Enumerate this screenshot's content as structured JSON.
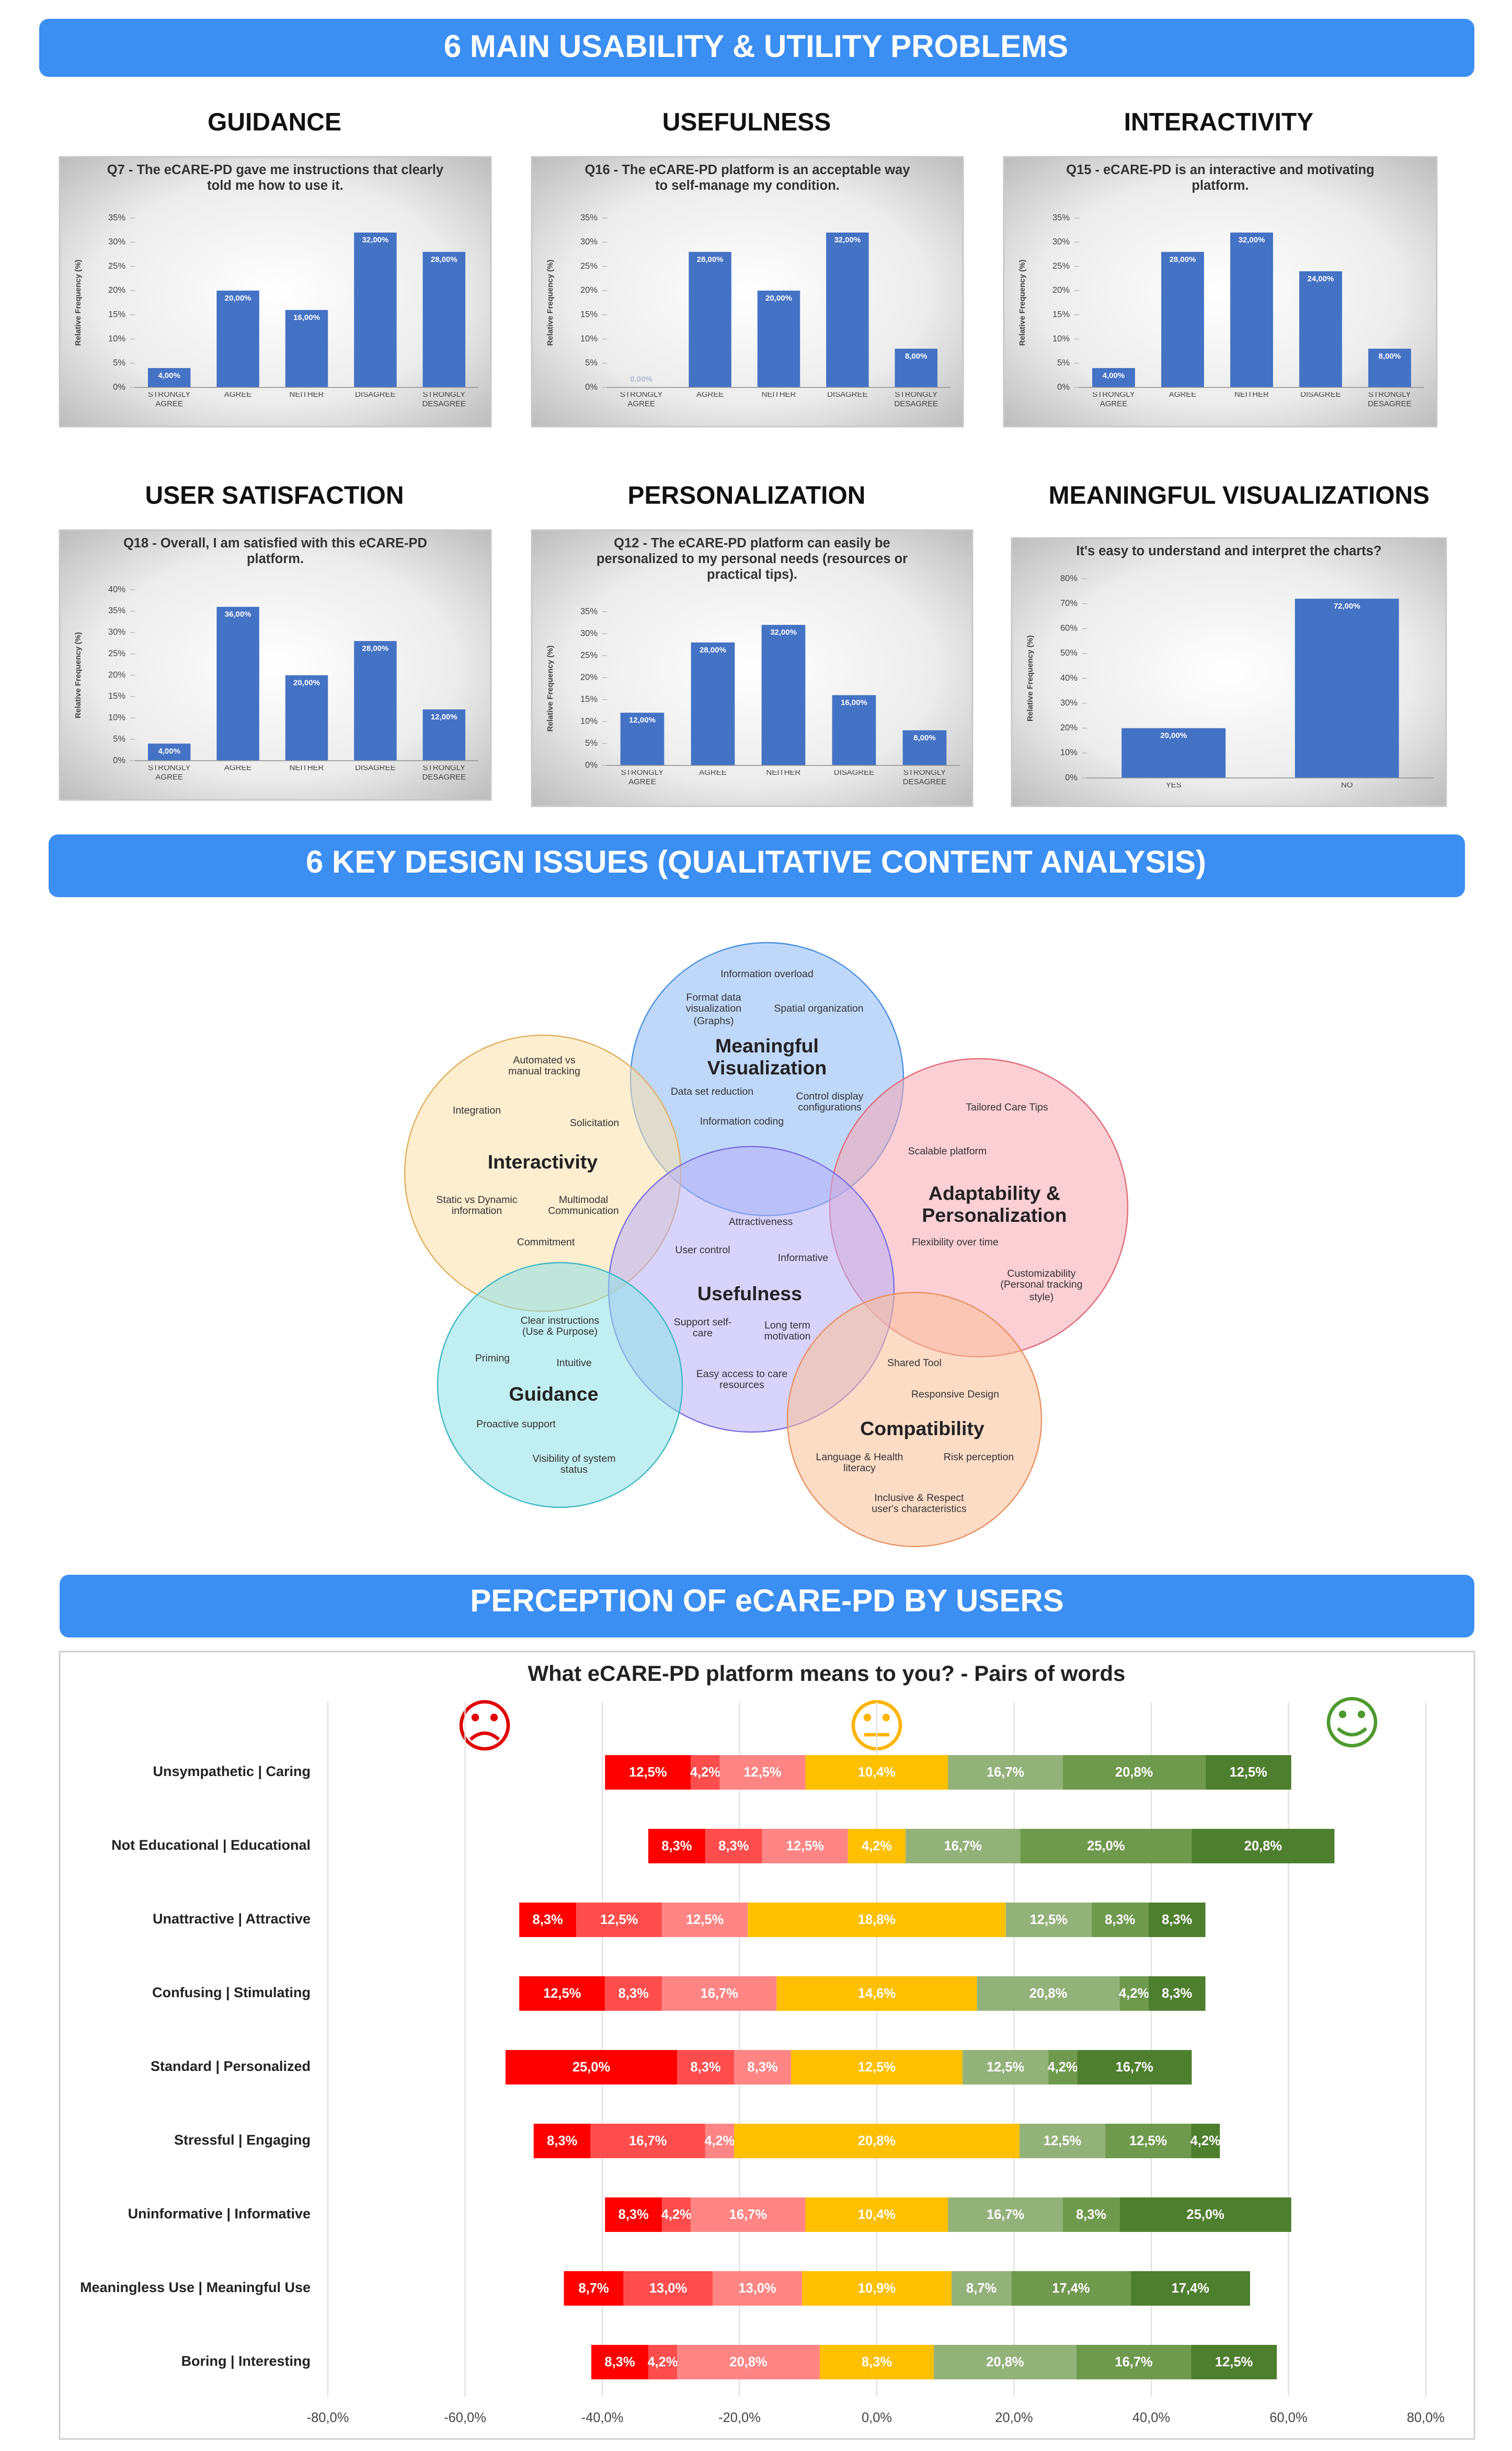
{
  "banners": [
    "6 MAIN USABILITY & UTILITY PROBLEMS",
    "6 KEY DESIGN ISSUES (QUALITATIVE CONTENT ANALYSIS)",
    "PERCEPTION OF eCARE-PD BY USERS"
  ],
  "chart_data": [
    {
      "type": "bar",
      "section": "GUIDANCE",
      "title": "Q7 - The eCARE-PD gave me instructions that clearly told me how to use it.",
      "y_label": "Relative Frequency (%)",
      "categories": [
        "STRONGLY AGREE",
        "AGREE",
        "NEITHER",
        "DISAGREE",
        "STRONGLY DESAGREE"
      ],
      "values": [
        4,
        20,
        16,
        32,
        28
      ],
      "value_labels": [
        "4,00%",
        "20,00%",
        "16,00%",
        "32,00%",
        "28,00%"
      ],
      "color": "#4472c4",
      "ylim": [
        0,
        35
      ],
      "yticks": [
        {
          "value": 0,
          "label": "0%"
        },
        {
          "value": 5,
          "label": "5%"
        },
        {
          "value": 10,
          "label": "10%"
        },
        {
          "value": 15,
          "label": "15%"
        },
        {
          "value": 20,
          "label": "20%"
        },
        {
          "value": 25,
          "label": "25%"
        },
        {
          "value": 30,
          "label": "30%"
        },
        {
          "value": 35,
          "label": "35%"
        }
      ]
    },
    {
      "type": "bar",
      "section": "USEFULNESS",
      "title": "Q16 - The eCARE-PD platform is an acceptable way to self-manage my condition.",
      "y_label": "Relative Frequency (%)",
      "categories": [
        "STRONGLY AGREE",
        "AGREE",
        "NEITHER",
        "DISAGREE",
        "STRONGLY DESAGREE"
      ],
      "values": [
        0,
        28,
        20,
        32,
        8
      ],
      "value_labels": [
        "0,00%",
        "28,00%",
        "20,00%",
        "32,00%",
        "8,00%"
      ],
      "color": "#4472c4",
      "ylim": [
        0,
        35
      ],
      "yticks": [
        {
          "value": 0,
          "label": "0%"
        },
        {
          "value": 5,
          "label": "5%"
        },
        {
          "value": 10,
          "label": "10%"
        },
        {
          "value": 15,
          "label": "15%"
        },
        {
          "value": 20,
          "label": "20%"
        },
        {
          "value": 25,
          "label": "25%"
        },
        {
          "value": 30,
          "label": "30%"
        },
        {
          "value": 35,
          "label": "35%"
        }
      ]
    },
    {
      "type": "bar",
      "section": "INTERACTIVITY",
      "title": "Q15 - eCARE-PD is an interactive and motivating platform.",
      "y_label": "Relative Frequency (%)",
      "categories": [
        "STRONGLY AGREE",
        "AGREE",
        "NEITHER",
        "DISAGREE",
        "STRONGLY DESAGREE"
      ],
      "values": [
        4,
        28,
        32,
        24,
        8
      ],
      "value_labels": [
        "4,00%",
        "28,00%",
        "32,00%",
        "24,00%",
        "8,00%"
      ],
      "color": "#4472c4",
      "ylim": [
        0,
        35
      ],
      "yticks": [
        {
          "value": 0,
          "label": "0%"
        },
        {
          "value": 5,
          "label": "5%"
        },
        {
          "value": 10,
          "label": "10%"
        },
        {
          "value": 15,
          "label": "15%"
        },
        {
          "value": 20,
          "label": "20%"
        },
        {
          "value": 25,
          "label": "25%"
        },
        {
          "value": 30,
          "label": "30%"
        },
        {
          "value": 35,
          "label": "35%"
        }
      ]
    },
    {
      "type": "bar",
      "section": "USER SATISFACTION",
      "title": "Q18 - Overall, I am satisfied with this eCARE-PD platform.",
      "y_label": "Relative Frequency (%)",
      "categories": [
        "STRONGLY AGREE",
        "AGREE",
        "NEITHER",
        "DISAGREE",
        "STRONGLY DESAGREE"
      ],
      "values": [
        4,
        36,
        20,
        28,
        12
      ],
      "value_labels": [
        "4,00%",
        "36,00%",
        "20,00%",
        "28,00%",
        "12,00%"
      ],
      "color": "#4472c4",
      "ylim": [
        0,
        40
      ],
      "yticks": [
        {
          "value": 0,
          "label": "0%"
        },
        {
          "value": 5,
          "label": "5%"
        },
        {
          "value": 10,
          "label": "10%"
        },
        {
          "value": 15,
          "label": "15%"
        },
        {
          "value": 20,
          "label": "20%"
        },
        {
          "value": 25,
          "label": "25%"
        },
        {
          "value": 30,
          "label": "30%"
        },
        {
          "value": 35,
          "label": "35%"
        },
        {
          "value": 40,
          "label": "40%"
        }
      ]
    },
    {
      "type": "bar",
      "section": "PERSONALIZATION",
      "title": "Q12 - The eCARE-PD platform can easily be personalized to my personal needs (resources or practical tips).",
      "y_label": "Relative Frequency (%)",
      "categories": [
        "STRONGLY AGREE",
        "AGREE",
        "NEITHER",
        "DISAGREE",
        "STRONGLY DESAGREE"
      ],
      "values": [
        12,
        28,
        32,
        16,
        8
      ],
      "value_labels": [
        "12,00%",
        "28,00%",
        "32,00%",
        "16,00%",
        "8,00%"
      ],
      "color": "#4472c4",
      "ylim": [
        0,
        35
      ],
      "yticks": [
        {
          "value": 0,
          "label": "0%"
        },
        {
          "value": 5,
          "label": "5%"
        },
        {
          "value": 10,
          "label": "10%"
        },
        {
          "value": 15,
          "label": "15%"
        },
        {
          "value": 20,
          "label": "20%"
        },
        {
          "value": 25,
          "label": "25%"
        },
        {
          "value": 30,
          "label": "30%"
        },
        {
          "value": 35,
          "label": "35%"
        }
      ]
    },
    {
      "type": "bar",
      "section": "MEANINGFUL VISUALIZATIONS",
      "title": "It's easy to understand and interpret the charts?",
      "y_label": "Relative Frequency (%)",
      "categories": [
        "YES",
        "NO"
      ],
      "values": [
        20,
        72
      ],
      "value_labels": [
        "20,00%",
        "72,00%"
      ],
      "color": "#4472c4",
      "ylim": [
        0,
        80
      ],
      "yticks": [
        {
          "value": 0,
          "label": "0%"
        },
        {
          "value": 10,
          "label": "10%"
        },
        {
          "value": 20,
          "label": "20%"
        },
        {
          "value": 30,
          "label": "30%"
        },
        {
          "value": 40,
          "label": "40%"
        },
        {
          "value": 50,
          "label": "50%"
        },
        {
          "value": 60,
          "label": "60%"
        },
        {
          "value": 70,
          "label": "70%"
        },
        {
          "value": 80,
          "label": "80%"
        }
      ]
    },
    {
      "type": "diverging_bar",
      "title": "What eCARE-PD platform means to you? - Pairs of words",
      "categories": [
        "Unsympathetic | Caring",
        "Not Educational | Educational",
        "Unattractive | Attractive",
        "Confusing | Stimulating",
        "Standard | Personalized",
        "Stressful | Engaging",
        "Uninformative | Informative",
        "Meaningless Use | Meaningful Use",
        "Boring | Interesting"
      ],
      "series": [
        {
          "color": "#ff0000",
          "values": [
            12.5,
            8.3,
            8.3,
            12.5,
            25.0,
            8.3,
            8.3,
            8.7,
            8.3
          ],
          "value_labels": [
            "12,5%",
            "8,3%",
            "8,3%",
            "12,5%",
            "25,0%",
            "8,3%",
            "8,3%",
            "8,7%",
            "8,3%"
          ]
        },
        {
          "color": "#ff4d4d",
          "values": [
            4.2,
            8.3,
            12.5,
            8.3,
            8.3,
            16.7,
            4.2,
            13.0,
            4.2
          ],
          "value_labels": [
            "4,2%",
            "8,3%",
            "12,5%",
            "8,3%",
            "8,3%",
            "16,7%",
            "4,2%",
            "13,0%",
            "4,2%"
          ]
        },
        {
          "color": "#ff8585",
          "values": [
            12.5,
            12.5,
            12.5,
            16.7,
            8.3,
            4.2,
            16.7,
            13.0,
            20.8
          ],
          "value_labels": [
            "12,5%",
            "12,5%",
            "12,5%",
            "16,7%",
            "8,3%",
            "4,2%",
            "16,7%",
            "13,0%",
            "20,8%"
          ]
        },
        {
          "color": "#ffc000",
          "values": [
            10.4,
            4.2,
            18.8,
            14.6,
            12.5,
            20.8,
            10.4,
            10.9,
            8.3
          ],
          "value_labels": [
            "10,4%",
            "4,2%",
            "18,8%",
            "14,6%",
            "12,5%",
            "20,8%",
            "10,4%",
            "10,9%",
            "8,3%"
          ]
        },
        {
          "color": "#93b27a",
          "values": [
            16.7,
            16.7,
            12.5,
            20.8,
            12.5,
            12.5,
            16.7,
            8.7,
            20.8
          ],
          "value_labels": [
            "16,7%",
            "16,7%",
            "12,5%",
            "20,8%",
            "12,5%",
            "12,5%",
            "16,7%",
            "8,7%",
            "20,8%"
          ]
        },
        {
          "color": "#6f9a4e",
          "values": [
            20.8,
            25.0,
            8.3,
            4.2,
            4.2,
            12.5,
            8.3,
            17.4,
            16.7
          ],
          "value_labels": [
            "20,8%",
            "25,0%",
            "8,3%",
            "4,2%",
            "4,2%",
            "12,5%",
            "8,3%",
            "17,4%",
            "16,7%"
          ]
        },
        {
          "color": "#4e7f2e",
          "values": [
            12.5,
            20.8,
            8.3,
            8.3,
            16.7,
            4.2,
            25.0,
            17.4,
            12.5
          ],
          "value_labels": [
            "12,5%",
            "20,8%",
            "8,3%",
            "8,3%",
            "16,7%",
            "4,2%",
            "25,0%",
            "17,4%",
            "12,5%"
          ]
        }
      ],
      "xlim": [
        -80,
        80
      ],
      "xticks": [
        {
          "value": -80,
          "label": "-80,0%"
        },
        {
          "value": -60,
          "label": "-60,0%"
        },
        {
          "value": -40,
          "label": "-40,0%"
        },
        {
          "value": -20,
          "label": "-20,0%"
        },
        {
          "value": 0,
          "label": "0,0%"
        },
        {
          "value": 20,
          "label": "20,0%"
        },
        {
          "value": 40,
          "label": "40,0%"
        },
        {
          "value": 60,
          "label": "60,0%"
        },
        {
          "value": 80,
          "label": "80,0%"
        }
      ],
      "grid": true
    }
  ],
  "diagram": {
    "circles": [
      {
        "label": "Meaningful Visualization",
        "items": [
          "Information overload",
          "Format data visualization (Graphs)",
          "Spatial organization",
          "Data set reduction",
          "Control display configurations",
          "Information coding"
        ]
      },
      {
        "label": "Interactivity",
        "items": [
          "Automated vs manual tracking",
          "Integration",
          "Solicitation",
          "Static vs Dynamic information",
          "Multimodal Communication",
          "Commitment"
        ]
      },
      {
        "label": "Adaptability & Personalization",
        "items": [
          "Tailored Care Tips",
          "Scalable platform",
          "Flexibility over time",
          "Customizability (Personal tracking style)"
        ]
      },
      {
        "label": "Usefulness",
        "items": [
          "Attractiveness",
          "User control",
          "Informative",
          "Support self-care",
          "Long term motivation",
          "Easy access to care resources"
        ]
      },
      {
        "label": "Guidance",
        "items": [
          "Clear instructions (Use & Purpose)",
          "Priming",
          "Intuitive",
          "Proactive support",
          "Visibility of system status"
        ]
      },
      {
        "label": "Compatibility",
        "items": [
          "Shared Tool",
          "Responsive Design",
          "Language & Health literacy",
          "Risk perception",
          "Inclusive & Respect user's characteristics"
        ]
      }
    ]
  }
}
